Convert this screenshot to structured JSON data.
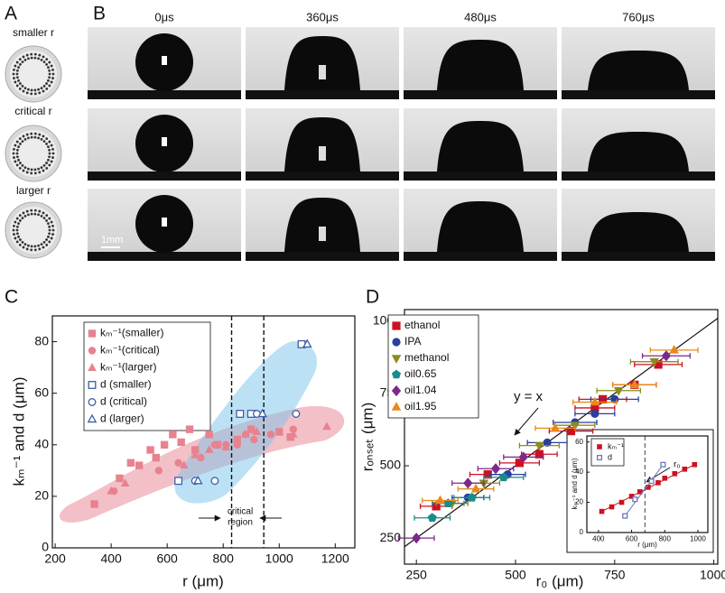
{
  "figure": {
    "panel_labels": [
      "A",
      "B",
      "C",
      "D"
    ]
  },
  "panel_a": {
    "labels": [
      "smaller r",
      "critical r",
      "larger r"
    ]
  },
  "panel_b": {
    "times": [
      "0μs",
      "360μs",
      "480μs",
      "760μs"
    ],
    "scale_bar": "1mm"
  },
  "chart_data": [
    {
      "type": "scatter",
      "xlabel": "r (μm)",
      "ylabel": "kₘ⁻¹ and d (μm)",
      "xlim": [
        190,
        1270
      ],
      "ylim": [
        0,
        90
      ],
      "xticks": [
        200,
        400,
        600,
        800,
        1000,
        1200
      ],
      "yticks": [
        0,
        20,
        40,
        60,
        80
      ],
      "vlines": [
        830,
        945
      ],
      "annotation": [
        "critical",
        "region"
      ],
      "series": [
        {
          "name": "kₘ⁻¹(smaller)",
          "color": "#e8828f",
          "marker": "square",
          "filled": true,
          "x": [
            340,
            430,
            470,
            500,
            540,
            560,
            590,
            620,
            650,
            680,
            700,
            750,
            780,
            850,
            900,
            1000,
            1040
          ],
          "y": [
            17,
            27,
            33,
            32,
            38,
            35,
            40,
            44,
            41,
            46,
            38,
            44,
            40,
            42,
            46,
            45,
            43
          ]
        },
        {
          "name": "kₘ⁻¹(critical)",
          "color": "#e8828f",
          "marker": "circle",
          "filled": true,
          "x": [
            410,
            570,
            640,
            720,
            770,
            810,
            850,
            880,
            910,
            970,
            1050
          ],
          "y": [
            22,
            30,
            33,
            35,
            40,
            40,
            40,
            44,
            42,
            44,
            46
          ]
        },
        {
          "name": "kₘ⁻¹(larger)",
          "color": "#e8828f",
          "marker": "triangle",
          "filled": true,
          "x": [
            400,
            450,
            660,
            700,
            750,
            810,
            880,
            920,
            1050,
            1170
          ],
          "y": [
            22,
            25,
            32,
            36,
            38,
            39,
            44,
            45,
            44,
            47
          ]
        },
        {
          "name": "d (smaller)",
          "color": "#3a5fa8",
          "marker": "square",
          "filled": false,
          "x": [
            640,
            860,
            900,
            1080
          ],
          "y": [
            26,
            52,
            52,
            79
          ]
        },
        {
          "name": "d (critical)",
          "color": "#3a5fa8",
          "marker": "circle",
          "filled": false,
          "x": [
            700,
            770,
            920,
            1060
          ],
          "y": [
            26,
            26,
            52,
            52
          ]
        },
        {
          "name": "d (larger)",
          "color": "#3a5fa8",
          "marker": "triangle",
          "filled": false,
          "x": [
            710,
            940,
            1100
          ],
          "y": [
            26,
            52,
            79
          ]
        }
      ]
    },
    {
      "type": "scatter",
      "xlabel": "r₀ (μm)",
      "ylabel": "rₒₙₛₑₜ (μm)",
      "xlim": [
        220,
        1010
      ],
      "ylim": [
        160,
        1040
      ],
      "xticks": [
        250,
        500,
        750,
        1000
      ],
      "yticks": [
        250,
        500,
        750,
        1000
      ],
      "identity_line": true,
      "annotation": [
        "y = x"
      ],
      "series": [
        {
          "name": "ethanol",
          "color": "#cc1122",
          "marker": "square",
          "filled": true,
          "x": [
            300,
            430,
            510,
            560,
            640,
            700,
            720,
            800,
            860
          ],
          "y": [
            360,
            470,
            510,
            540,
            620,
            700,
            730,
            780,
            850
          ],
          "xerr": [
            40,
            45,
            50,
            45,
            55,
            50,
            60,
            55,
            60
          ]
        },
        {
          "name": "IPA",
          "color": "#2b3f9c",
          "marker": "circle",
          "filled": true,
          "x": [
            380,
            480,
            580,
            650,
            700,
            750
          ],
          "y": [
            390,
            470,
            580,
            650,
            680,
            730
          ],
          "xerr": [
            40,
            45,
            50,
            55,
            50,
            60
          ]
        },
        {
          "name": "methanol",
          "color": "#8b8b1f",
          "marker": "tridown",
          "filled": true,
          "x": [
            340,
            420,
            560,
            650,
            760,
            850
          ],
          "y": [
            370,
            440,
            570,
            640,
            760,
            860
          ],
          "xerr": [
            40,
            40,
            50,
            50,
            55,
            60
          ]
        },
        {
          "name": "oil0.65",
          "color": "#1b8b8b",
          "marker": "pentagon",
          "filled": true,
          "x": [
            290,
            330,
            390,
            470
          ],
          "y": [
            320,
            370,
            390,
            460
          ],
          "xerr": [
            45,
            40,
            45,
            50
          ]
        },
        {
          "name": "oil1.04",
          "color": "#7b2a8b",
          "marker": "diamond",
          "filled": true,
          "x": [
            250,
            380,
            450,
            520,
            880
          ],
          "y": [
            250,
            440,
            490,
            530,
            880
          ],
          "xerr": [
            45,
            40,
            45,
            50,
            60
          ]
        },
        {
          "name": "oil1.95",
          "color": "#e8891a",
          "marker": "triangle",
          "filled": true,
          "x": [
            310,
            400,
            600,
            700,
            800,
            900
          ],
          "y": [
            380,
            420,
            630,
            720,
            780,
            900
          ],
          "xerr": [
            45,
            45,
            50,
            55,
            55,
            60
          ]
        }
      ]
    },
    {
      "type": "scatter",
      "xlabel": "r (μm)",
      "ylabel": "kₘ⁻¹ and d (μm)",
      "xlim": [
        330,
        1060
      ],
      "ylim": [
        0,
        64
      ],
      "xticks": [
        400,
        600,
        800,
        1000
      ],
      "yticks": [
        0,
        20,
        40,
        60
      ],
      "vlines": [
        680
      ],
      "annotation": [
        "r₀"
      ],
      "fit": true,
      "series": [
        {
          "name": "kₘ⁻¹",
          "color": "#cc1122",
          "marker": "square",
          "filled": true,
          "x": [
            420,
            480,
            540,
            600,
            650,
            700,
            760,
            800,
            860,
            920,
            980
          ],
          "y": [
            14,
            17,
            20,
            24,
            27,
            30,
            33,
            36,
            39,
            42,
            45
          ]
        },
        {
          "name": "d",
          "color": "#6a78c0",
          "marker": "square",
          "filled": false,
          "x": [
            560,
            620,
            720,
            790
          ],
          "y": [
            11,
            22,
            34,
            45
          ]
        }
      ]
    }
  ]
}
